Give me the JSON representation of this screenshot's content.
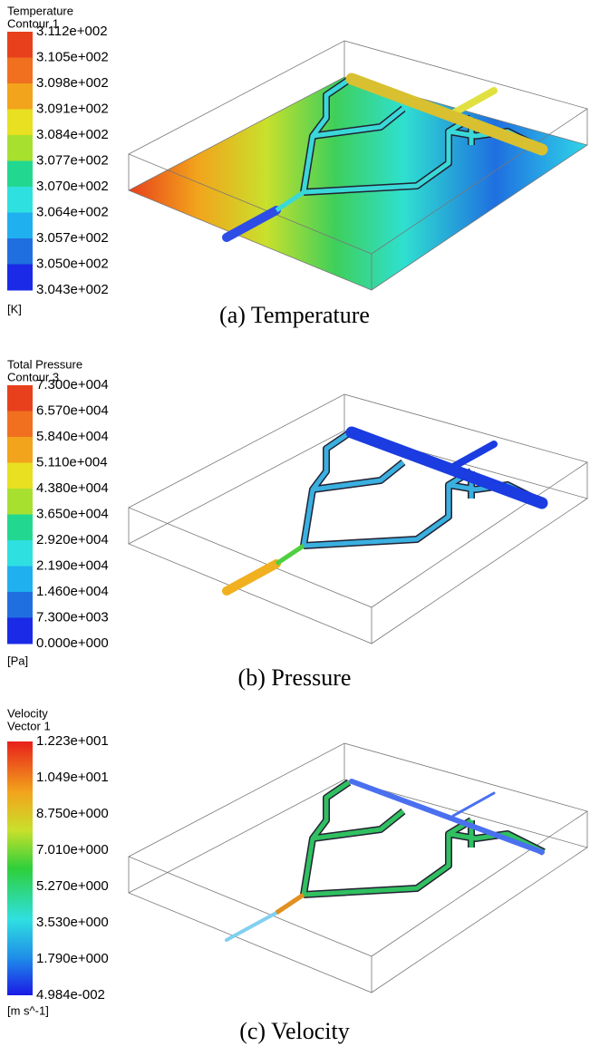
{
  "panels": [
    {
      "title": "Temperature",
      "subtitle": "Contour 1",
      "levels": [
        "3.112e+002",
        "3.105e+002",
        "3.098e+002",
        "3.091e+002",
        "3.084e+002",
        "3.077e+002",
        "3.070e+002",
        "3.064e+002",
        "3.057e+002",
        "3.050e+002",
        "3.043e+002"
      ],
      "unit": "[K]",
      "caption": "(a) Temperature"
    },
    {
      "title": "Total Pressure",
      "subtitle": "Contour 3",
      "levels": [
        "7.300e+004",
        "6.570e+004",
        "5.840e+004",
        "5.110e+004",
        "4.380e+004",
        "3.650e+004",
        "2.920e+004",
        "2.190e+004",
        "1.460e+004",
        "7.300e+003",
        "0.000e+000"
      ],
      "unit": "[Pa]",
      "caption": "(b) Pressure"
    },
    {
      "title": "Velocity",
      "subtitle": "Vector 1",
      "levels": [
        "1.223e+001",
        "1.049e+001",
        "8.750e+000",
        "7.010e+000",
        "5.270e+000",
        "3.530e+000",
        "1.790e+000",
        "4.984e-002"
      ],
      "unit": "[m s^-1]",
      "caption": "(c) Velocity"
    }
  ]
}
